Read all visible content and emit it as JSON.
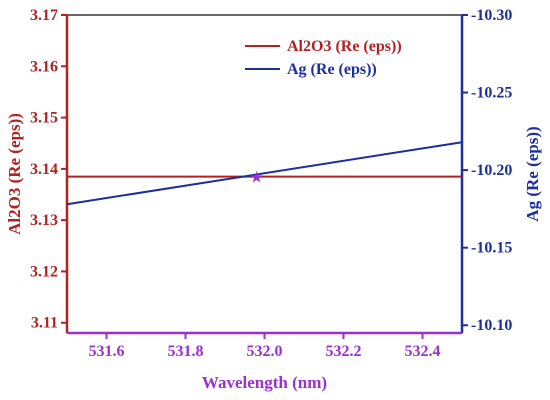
{
  "chart_data": {
    "type": "line",
    "xlabel": "Wavelength (nm)",
    "ylabel_left": "Al2O3 (Re (eps))",
    "ylabel_right": "Ag (Re (eps))",
    "xlim": [
      531.5,
      532.5
    ],
    "ylim_left": [
      3.108,
      3.17
    ],
    "ylim_right": [
      -10.095,
      -10.3
    ],
    "x_ticks": [
      "531.6",
      "531.8",
      "532.0",
      "532.2",
      "532.4"
    ],
    "x_tick_values": [
      531.6,
      531.8,
      532.0,
      532.2,
      532.4
    ],
    "left_ticks": [
      "3.11",
      "3.12",
      "3.13",
      "3.14",
      "3.15",
      "3.16",
      "3.17"
    ],
    "left_tick_values": [
      3.11,
      3.12,
      3.13,
      3.14,
      3.15,
      3.16,
      3.17
    ],
    "right_ticks": [
      "-10.10",
      "-10.15",
      "-10.20",
      "-10.25",
      "-10.30"
    ],
    "right_tick_values": [
      -10.1,
      -10.15,
      -10.2,
      -10.25,
      -10.3
    ],
    "series": [
      {
        "name": "Al2O3 (Re (eps))",
        "axis": "left",
        "color": "#b22222",
        "x": [
          531.5,
          532.5
        ],
        "y": [
          3.1385,
          3.1385
        ]
      },
      {
        "name": "Ag (Re (eps))",
        "axis": "right",
        "color": "#1c2ea0",
        "x": [
          531.5,
          532.5
        ],
        "y": [
          -10.178,
          -10.218
        ]
      }
    ],
    "marker": {
      "symbol": "★",
      "x": 531.98,
      "y_left": 3.1385,
      "color": "#9b30d0"
    },
    "colors": {
      "left_axis": "#b22222",
      "right_axis": "#1c2ea0",
      "x_axis": "#9b30d0"
    },
    "legend_position": "top-right",
    "grid": false
  }
}
